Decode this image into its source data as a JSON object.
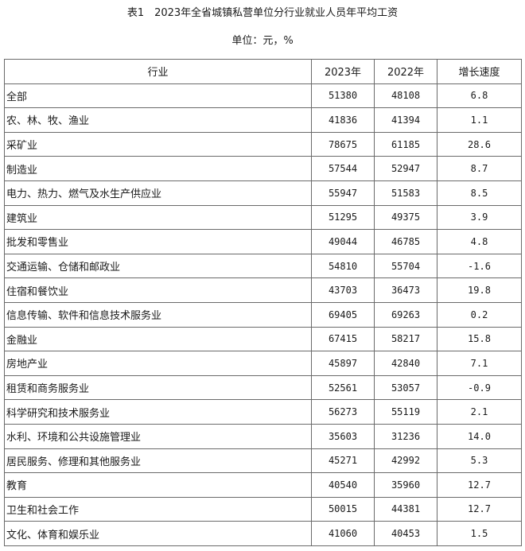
{
  "title": "表1　2023年全省城镇私营单位分行业就业人员年平均工资",
  "unit": "单位：元，%",
  "headers": {
    "industry": "行业",
    "y2023": "2023年",
    "y2022": "2022年",
    "growth": "增长速度"
  },
  "rows": [
    {
      "industry": "全部",
      "y2023": "51380",
      "y2022": "48108",
      "growth": "6.8"
    },
    {
      "industry": "农、林、牧、渔业",
      "y2023": "41836",
      "y2022": "41394",
      "growth": "1.1"
    },
    {
      "industry": "采矿业",
      "y2023": "78675",
      "y2022": "61185",
      "growth": "28.6"
    },
    {
      "industry": "制造业",
      "y2023": "57544",
      "y2022": "52947",
      "growth": "8.7"
    },
    {
      "industry": "电力、热力、燃气及水生产供应业",
      "y2023": "55947",
      "y2022": "51583",
      "growth": "8.5"
    },
    {
      "industry": "建筑业",
      "y2023": "51295",
      "y2022": "49375",
      "growth": "3.9"
    },
    {
      "industry": "批发和零售业",
      "y2023": "49044",
      "y2022": "46785",
      "growth": "4.8"
    },
    {
      "industry": "交通运输、仓储和邮政业",
      "y2023": "54810",
      "y2022": "55704",
      "growth": "-1.6"
    },
    {
      "industry": "住宿和餐饮业",
      "y2023": "43703",
      "y2022": "36473",
      "growth": "19.8"
    },
    {
      "industry": "信息传输、软件和信息技术服务业",
      "y2023": "69405",
      "y2022": "69263",
      "growth": "0.2"
    },
    {
      "industry": "金融业",
      "y2023": "67415",
      "y2022": "58217",
      "growth": "15.8"
    },
    {
      "industry": "房地产业",
      "y2023": "45897",
      "y2022": "42840",
      "growth": "7.1"
    },
    {
      "industry": "租赁和商务服务业",
      "y2023": "52561",
      "y2022": "53057",
      "growth": "-0.9"
    },
    {
      "industry": "科学研究和技术服务业",
      "y2023": "56273",
      "y2022": "55119",
      "growth": "2.1"
    },
    {
      "industry": "水利、环境和公共设施管理业",
      "y2023": "35603",
      "y2022": "31236",
      "growth": "14.0"
    },
    {
      "industry": "居民服务、修理和其他服务业",
      "y2023": "45271",
      "y2022": "42992",
      "growth": "5.3"
    },
    {
      "industry": "教育",
      "y2023": "40540",
      "y2022": "35960",
      "growth": "12.7"
    },
    {
      "industry": "卫生和社会工作",
      "y2023": "50015",
      "y2022": "44381",
      "growth": "12.7"
    },
    {
      "industry": "文化、体育和娱乐业",
      "y2023": "41060",
      "y2022": "40453",
      "growth": "1.5"
    }
  ]
}
